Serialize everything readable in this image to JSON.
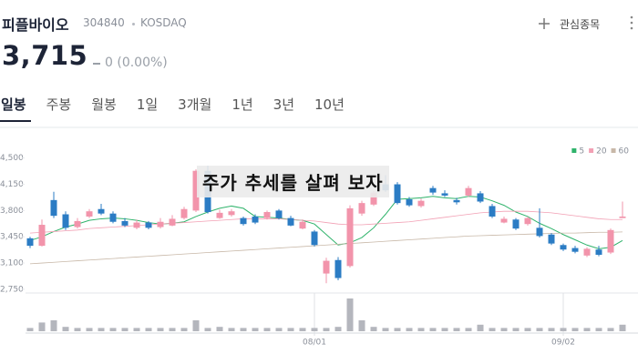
{
  "header": {
    "name": "피플바이오",
    "code": "304840",
    "market": "KOSDAQ",
    "watch": "관심종목"
  },
  "quote": {
    "price": "3,715",
    "change": "0 (0.00%)"
  },
  "tabs": [
    "일봉",
    "주봉",
    "월봉",
    "1일",
    "3개월",
    "1년",
    "3년",
    "10년"
  ],
  "overlay": "주가 추세를 살펴 보자",
  "chart_data": {
    "type": "candlestick",
    "categories": [
      null,
      null,
      null,
      null,
      null,
      null,
      null,
      null,
      null,
      null,
      null,
      null,
      null,
      null,
      null,
      null,
      null,
      null,
      null,
      null,
      null,
      null,
      null,
      null,
      "08/01",
      null,
      null,
      null,
      null,
      null,
      null,
      null,
      null,
      null,
      null,
      null,
      null,
      null,
      null,
      null,
      null,
      null,
      null,
      null,
      null,
      "09/02",
      null,
      null,
      null,
      null,
      null
    ],
    "open": [
      3430,
      3330,
      3940,
      3750,
      3580,
      3720,
      3820,
      3760,
      3660,
      3570,
      3640,
      3580,
      3600,
      3700,
      3800,
      4330,
      3700,
      3740,
      3700,
      3720,
      3700,
      3800,
      3700,
      3560,
      3520,
      2960,
      3140,
      3060,
      3760,
      3880,
      4150,
      4150,
      3950,
      3860,
      4100,
      4030,
      3940,
      4000,
      4030,
      3860,
      3640,
      3680,
      3620,
      3570,
      3480,
      3340,
      3300,
      3200,
      3280,
      3240,
      3700
    ],
    "high": [
      3450,
      3680,
      4050,
      3790,
      3700,
      3820,
      3890,
      3790,
      3700,
      3680,
      3660,
      3700,
      3740,
      3850,
      4350,
      4400,
      3810,
      3820,
      3720,
      3750,
      3800,
      3820,
      3730,
      3680,
      3540,
      3170,
      3180,
      3870,
      3930,
      4060,
      4270,
      4180,
      3980,
      3960,
      4130,
      4070,
      3970,
      4130,
      4060,
      3890,
      3720,
      3700,
      3720,
      3830,
      3500,
      3360,
      3330,
      3310,
      3330,
      3560,
      3920
    ],
    "low": [
      3300,
      3320,
      3700,
      3540,
      3560,
      3700,
      3740,
      3630,
      3580,
      3550,
      3550,
      3560,
      3590,
      3680,
      3780,
      3760,
      3690,
      3720,
      3600,
      3620,
      3680,
      3680,
      3590,
      3550,
      3320,
      2830,
      2870,
      3040,
      3730,
      3860,
      4050,
      3880,
      3850,
      3840,
      4010,
      3980,
      3880,
      3980,
      3900,
      3700,
      3630,
      3540,
      3600,
      3440,
      3340,
      3260,
      3230,
      3180,
      3190,
      3220,
      3700
    ],
    "close": [
      3330,
      3610,
      3730,
      3570,
      3660,
      3790,
      3760,
      3650,
      3600,
      3640,
      3570,
      3650,
      3690,
      3820,
      4330,
      3780,
      3770,
      3790,
      3620,
      3640,
      3780,
      3700,
      3600,
      3650,
      3340,
      3130,
      2900,
      3830,
      3900,
      4040,
      4070,
      3900,
      3870,
      3930,
      4040,
      4000,
      3910,
      4100,
      3920,
      3720,
      3690,
      3560,
      3700,
      3460,
      3360,
      3280,
      3250,
      3290,
      3210,
      3540,
      3720
    ],
    "up_color": "#f294ab",
    "down_color": "#2b7cc4",
    "series": [
      {
        "name": "5",
        "color": "#2fb36b",
        "values": [
          3400,
          3450,
          3520,
          3580,
          3620,
          3670,
          3690,
          3700,
          3690,
          3670,
          3640,
          3620,
          3630,
          3650,
          3720,
          3780,
          3830,
          3860,
          3830,
          3720,
          3710,
          3700,
          3680,
          3670,
          3620,
          3480,
          3340,
          3370,
          3440,
          3570,
          3750,
          3950,
          3960,
          3970,
          3990,
          3970,
          3960,
          3990,
          3980,
          3930,
          3870,
          3780,
          3720,
          3630,
          3560,
          3480,
          3410,
          3340,
          3290,
          3310,
          3400
        ]
      },
      {
        "name": "20",
        "color": "#f2a0b4",
        "values": [
          3500,
          3510,
          3520,
          3530,
          3540,
          3560,
          3570,
          3580,
          3590,
          3600,
          3610,
          3620,
          3630,
          3640,
          3650,
          3660,
          3670,
          3680,
          3690,
          3690,
          3690,
          3690,
          3680,
          3670,
          3660,
          3640,
          3620,
          3610,
          3610,
          3620,
          3630,
          3640,
          3650,
          3670,
          3690,
          3710,
          3730,
          3750,
          3770,
          3780,
          3790,
          3790,
          3790,
          3780,
          3770,
          3750,
          3730,
          3710,
          3690,
          3680,
          3680
        ]
      },
      {
        "name": "60",
        "color": "#c8b8a8",
        "values": [
          3090,
          3100,
          3110,
          3120,
          3130,
          3140,
          3150,
          3160,
          3170,
          3180,
          3190,
          3200,
          3210,
          3220,
          3230,
          3240,
          3250,
          3260,
          3270,
          3280,
          3290,
          3300,
          3310,
          3320,
          3330,
          3340,
          3350,
          3360,
          3370,
          3380,
          3390,
          3400,
          3410,
          3420,
          3430,
          3440,
          3450,
          3460,
          3465,
          3470,
          3475,
          3480,
          3485,
          3490,
          3495,
          3500,
          3500,
          3505,
          3510,
          3510,
          3515
        ]
      }
    ],
    "volume": [
      3,
      8,
      10,
      4,
      3,
      3,
      3,
      3,
      3,
      3,
      3,
      3,
      3,
      3,
      10,
      3,
      4,
      3,
      3,
      3,
      3,
      3,
      3,
      3,
      3,
      3,
      4,
      30,
      10,
      4,
      3,
      3,
      3,
      3,
      3,
      3,
      3,
      3,
      6,
      3,
      3,
      3,
      3,
      3,
      3,
      3,
      3,
      3,
      3,
      3,
      6
    ],
    "volume_color": "#b4b6bd",
    "ylim": [
      2700,
      4630
    ],
    "yticks": [
      {
        "value": 4500,
        "label": "4,500"
      },
      {
        "value": 4150,
        "label": "4,150"
      },
      {
        "value": 3800,
        "label": "3,800"
      },
      {
        "value": 3450,
        "label": "3,450"
      },
      {
        "value": 3100,
        "label": "3,100"
      },
      {
        "value": 2750,
        "label": "2,750"
      }
    ],
    "legend": "top-right"
  }
}
